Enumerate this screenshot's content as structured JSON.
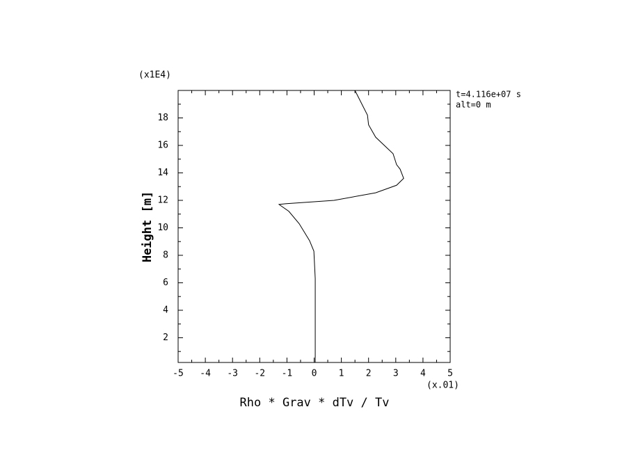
{
  "chart_data": {
    "type": "line",
    "x_label": "Rho * Grav * dTv / Tv",
    "y_label": "Height [m]",
    "x_scale_label": "(x.01)",
    "y_scale_label": "(x1E4)",
    "annotations": [
      "t=4.116e+07 s",
      "alt=0 m"
    ],
    "xlim": [
      -5,
      5
    ],
    "xticks": [
      -5,
      -4,
      -3,
      -2,
      -1,
      0,
      1,
      2,
      3,
      4,
      5
    ],
    "ylim": [
      0.2,
      20
    ],
    "yticks": [
      2,
      4,
      6,
      8,
      10,
      12,
      14,
      16,
      18
    ],
    "series": [
      {
        "color": "#000000",
        "x": [
          0.04,
          0.04,
          -0.01,
          -0.17,
          -0.55,
          -0.93,
          -1.29,
          -1.06,
          0.73,
          2.26,
          3.03,
          3.29,
          3.16,
          3.03,
          2.9,
          2.26,
          2.0,
          1.96,
          1.5
        ],
        "y": [
          0.2,
          6.3,
          8.3,
          9.07,
          10.3,
          11.2,
          11.7,
          11.75,
          12.0,
          12.55,
          13.1,
          13.6,
          14.27,
          14.6,
          15.4,
          16.6,
          17.5,
          18.2,
          20
        ]
      }
    ]
  }
}
